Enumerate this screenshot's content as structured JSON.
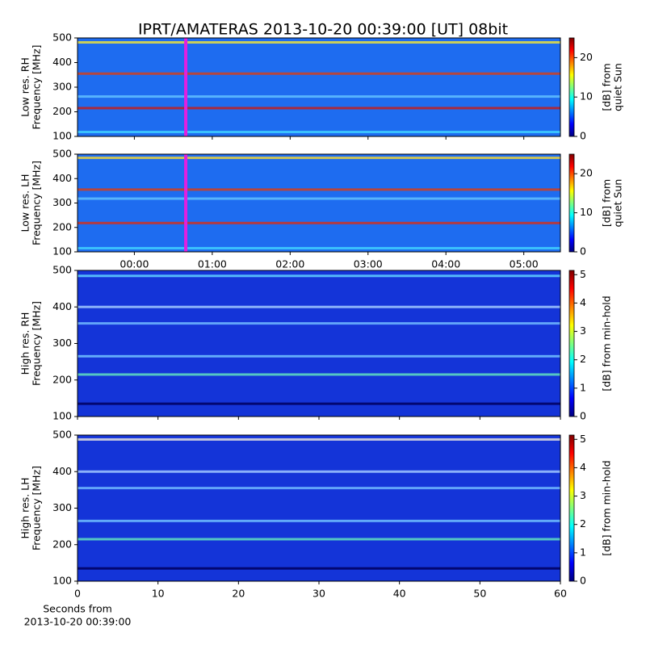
{
  "chart_data": {
    "title": "IPRT/AMATERAS 2013-10-20 00:39:00 [UT]   08bit",
    "panels": [
      {
        "type": "heatmap",
        "ylabel": [
          "Low res. RH",
          "Frequency [MHz]"
        ],
        "ylim": [
          100,
          500
        ],
        "yticks": [
          100,
          200,
          300,
          400,
          500
        ],
        "xlim": [
          -0.73,
          5.47
        ],
        "xticks": [
          0,
          1,
          2,
          3,
          4,
          5
        ],
        "xtick_labels": false,
        "background": "#1e6cf0",
        "marker_x": 0.66,
        "marker_color": "#e020e0",
        "bands": [
          {
            "freq": 482,
            "color": "#e8e040"
          },
          {
            "freq": 355,
            "color": "#d04020"
          },
          {
            "freq": 262,
            "color": "#60c0ff"
          },
          {
            "freq": 215,
            "color": "#c02020"
          },
          {
            "freq": 118,
            "color": "#40d0ff"
          }
        ],
        "colorbar": {
          "label": [
            "[dB] from",
            "quiet Sun"
          ],
          "lim": [
            0,
            25
          ],
          "ticks": [
            0,
            10,
            20
          ],
          "colormap": "jet"
        }
      },
      {
        "type": "heatmap",
        "ylabel": [
          "Low res. LH",
          "Frequency [MHz]"
        ],
        "ylim": [
          100,
          500
        ],
        "yticks": [
          100,
          200,
          300,
          400,
          500
        ],
        "xlim": [
          -0.73,
          5.47
        ],
        "xticks": [
          {
            "value": 0,
            "label": "00:00"
          },
          {
            "value": 1,
            "label": "01:00"
          },
          {
            "value": 2,
            "label": "02:00"
          },
          {
            "value": 3,
            "label": "03:00"
          },
          {
            "value": 4,
            "label": "04:00"
          },
          {
            "value": 5,
            "label": "05:00"
          }
        ],
        "xtick_labels": true,
        "background": "#1e6cf0",
        "marker_x": 0.66,
        "marker_color": "#e020e0",
        "bands": [
          {
            "freq": 485,
            "color": "#e8d040"
          },
          {
            "freq": 355,
            "color": "#d04020"
          },
          {
            "freq": 318,
            "color": "#60c0ff"
          },
          {
            "freq": 218,
            "color": "#d03020"
          },
          {
            "freq": 115,
            "color": "#40d0ff"
          }
        ],
        "colorbar": {
          "label": [
            "[dB] from",
            "quiet Sun"
          ],
          "lim": [
            0,
            25
          ],
          "ticks": [
            0,
            10,
            20
          ],
          "colormap": "jet"
        }
      },
      {
        "type": "heatmap",
        "ylabel": [
          "High res. RH",
          "Frequency [MHz]"
        ],
        "ylim": [
          100,
          500
        ],
        "yticks": [
          100,
          200,
          300,
          400,
          500
        ],
        "xlim": [
          0,
          60
        ],
        "xticks": [
          0,
          10,
          20,
          30,
          40,
          50,
          60
        ],
        "xtick_labels": false,
        "background": "#1434d8",
        "bands": [
          {
            "freq": 485,
            "color": "#60d0ff"
          },
          {
            "freq": 400,
            "color": "#a0c8ff"
          },
          {
            "freq": 355,
            "color": "#70b8ff"
          },
          {
            "freq": 265,
            "color": "#70c0ff"
          },
          {
            "freq": 215,
            "color": "#60e0c0"
          },
          {
            "freq": 135,
            "color": "#000060"
          }
        ],
        "colorbar": {
          "label": [
            "[dB] from min-hold"
          ],
          "lim": [
            0,
            5.15
          ],
          "ticks": [
            0,
            1,
            2,
            3,
            4,
            5
          ],
          "colormap": "jet"
        }
      },
      {
        "type": "heatmap",
        "ylabel": [
          "High res. LH",
          "Frequency [MHz]"
        ],
        "ylim": [
          100,
          500
        ],
        "yticks": [
          100,
          200,
          300,
          400,
          500
        ],
        "xlim": [
          0,
          60
        ],
        "xticks": [
          0,
          10,
          20,
          30,
          40,
          50,
          60
        ],
        "xtick_labels": true,
        "xlabel": [
          "Seconds from",
          "2013-10-20 00:39:00"
        ],
        "background": "#1434d8",
        "bands": [
          {
            "freq": 488,
            "color": "#e0e0e0"
          },
          {
            "freq": 400,
            "color": "#a0c8ff"
          },
          {
            "freq": 355,
            "color": "#70b8ff"
          },
          {
            "freq": 265,
            "color": "#70c0ff"
          },
          {
            "freq": 215,
            "color": "#60e0c0"
          },
          {
            "freq": 135,
            "color": "#000060"
          }
        ],
        "colorbar": {
          "label": [
            "[dB] from min-hold"
          ],
          "lim": [
            0,
            5.15
          ],
          "ticks": [
            0,
            1,
            2,
            3,
            4,
            5
          ],
          "colormap": "jet"
        }
      }
    ]
  }
}
